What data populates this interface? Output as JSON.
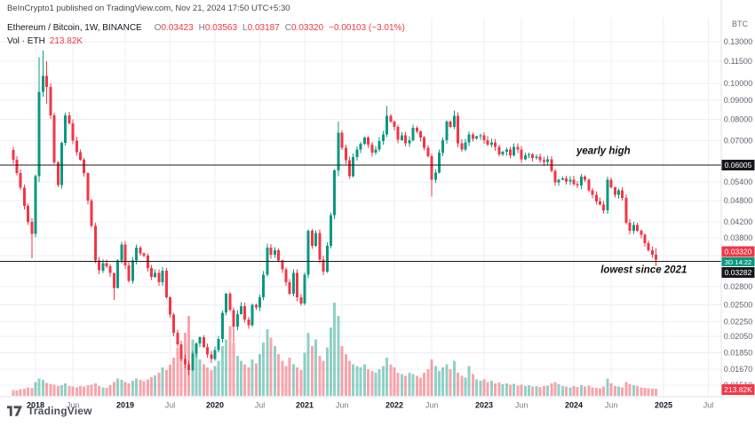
{
  "header": {
    "attribution": "BeInCrypto1 published on TradingView.com, Nov 21, 2024 17:50 UTC+5:30",
    "quote_currency": "BTC"
  },
  "legend": {
    "symbol_title": "Ethereum / Bitcoin, 1W, BINANCE",
    "o_label": "O",
    "o_value": "0.03423",
    "h_label": "H",
    "h_value": "0.03563",
    "l_label": "L",
    "l_value": "0.03187",
    "c_label": "C",
    "c_value": "0.03320",
    "change": "−0.00103 (−3.01%)",
    "vol_label": "Vol · ETH",
    "vol_value": "213.82K"
  },
  "footer": {
    "brand": "TradingView"
  },
  "chart_data": {
    "type": "candlestick",
    "symbol": "ETHBTC",
    "exchange": "BINANCE",
    "timeframe": "1W",
    "scale": "log",
    "ylim": [
      0.014,
      0.1511
    ],
    "grid": true,
    "ohlc_current": {
      "open": 0.03423,
      "high": 0.03563,
      "low": 0.03187,
      "close": 0.0332,
      "change": -0.00103,
      "change_pct": -3.01,
      "volume_label": "213.82K"
    },
    "price_lines": [
      {
        "price": 0.06005,
        "label": "0.06005"
      },
      {
        "price": 0.03282,
        "label": "0.03282"
      }
    ],
    "last_price_label": {
      "text": "0.03320"
    },
    "countdown_label": {
      "text": "3D 14:22"
    },
    "volume_axis_label": {
      "text": "213.82K"
    },
    "annotations": [
      {
        "text": "yearly high",
        "t": 2024.33,
        "price": 0.0658
      },
      {
        "text": "lowest since 2021",
        "t": 2024.78,
        "price": 0.0312
      }
    ],
    "y_ticks": [
      {
        "label": "0.13000",
        "p": 0.13
      },
      {
        "label": "0.11500",
        "p": 0.115
      },
      {
        "label": "0.10000",
        "p": 0.1
      },
      {
        "label": "0.09000",
        "p": 0.09
      },
      {
        "label": "0.08000",
        "p": 0.08
      },
      {
        "label": "0.07000",
        "p": 0.07
      },
      {
        "label": "0.05400",
        "p": 0.054
      },
      {
        "label": "0.04800",
        "p": 0.048
      },
      {
        "label": "0.04200",
        "p": 0.042
      },
      {
        "label": "0.03800",
        "p": 0.038
      },
      {
        "label": "0.02800",
        "p": 0.028
      },
      {
        "label": "0.02500",
        "p": 0.025
      },
      {
        "label": "0.02250",
        "p": 0.0225
      },
      {
        "label": "0.02050",
        "p": 0.0205
      },
      {
        "label": "0.01850",
        "p": 0.0185
      },
      {
        "label": "0.01670",
        "p": 0.0167
      },
      {
        "label": "0.01510",
        "p": 0.0151
      }
    ],
    "y_grid_extra": [
      0.06,
      0.034
    ],
    "x_ticks": [
      {
        "label": "2018",
        "t": 2018,
        "year": true
      },
      {
        "label": "Jun",
        "t": 2018.417
      },
      {
        "label": "2019",
        "t": 2019,
        "year": true
      },
      {
        "label": "Jul",
        "t": 2019.5
      },
      {
        "label": "2020",
        "t": 2020,
        "year": true
      },
      {
        "label": "Jul",
        "t": 2020.5
      },
      {
        "label": "2021",
        "t": 2021,
        "year": true
      },
      {
        "label": "Jun",
        "t": 2021.417
      },
      {
        "label": "2022",
        "t": 2022,
        "year": true
      },
      {
        "label": "Jun",
        "t": 2022.417
      },
      {
        "label": "2023",
        "t": 2023,
        "year": true
      },
      {
        "label": "Jun",
        "t": 2023.417
      },
      {
        "label": "2024",
        "t": 2024,
        "year": true
      },
      {
        "label": "Jun",
        "t": 2024.417
      },
      {
        "label": "2025",
        "t": 2025,
        "year": true
      },
      {
        "label": "Jul",
        "t": 2025.5
      }
    ],
    "colors": {
      "up": "#089981",
      "down": "#f23645",
      "vol_up": "rgba(8,153,129,0.45)",
      "vol_down": "rgba(242,54,69,0.45)",
      "line": "#16181d",
      "grid": "#eceff5",
      "separator": "#e0e3eb",
      "axis_text": "#5f636e",
      "year_text": "#131722",
      "month_text": "#787b86",
      "badge_dark": "#16181d",
      "badge_red": "#f23645",
      "badge_teal": "#089981",
      "annotation_text": "#0f0f0f"
    },
    "t0": 2017.75,
    "dt": 0.0416667,
    "open_first": 0.066,
    "vol_max_k": 2800,
    "points": [
      [
        0.062,
        180
      ],
      [
        0.057,
        160
      ],
      [
        0.052,
        200
      ],
      [
        0.0465,
        220
      ],
      [
        0.042,
        260
      ],
      [
        0.039,
        240,
        0.043,
        0.0335
      ],
      [
        0.056,
        420
      ],
      [
        0.095,
        520,
        0.118,
        0.054
      ],
      [
        0.105,
        480,
        0.123,
        0.092
      ],
      [
        0.098,
        390,
        0.115,
        0.088
      ],
      [
        0.082,
        360
      ],
      [
        0.061,
        340
      ],
      [
        0.053,
        300
      ],
      [
        0.069,
        320
      ],
      [
        0.082,
        380
      ],
      [
        0.078,
        300
      ],
      [
        0.07,
        280
      ],
      [
        0.065,
        260
      ],
      [
        0.062,
        300
      ],
      [
        0.057,
        280
      ],
      [
        0.048,
        320
      ],
      [
        0.041,
        340
      ],
      [
        0.033,
        380
      ],
      [
        0.031,
        300
      ],
      [
        0.0325,
        260
      ],
      [
        0.0318,
        240
      ],
      [
        0.0305,
        320
      ],
      [
        0.0278,
        420,
        0.0305,
        0.0258
      ],
      [
        0.033,
        520
      ],
      [
        0.0365,
        480
      ],
      [
        0.032,
        420
      ],
      [
        0.029,
        380
      ],
      [
        0.033,
        460
      ],
      [
        0.0358,
        520
      ],
      [
        0.0345,
        480
      ],
      [
        0.034,
        440
      ],
      [
        0.0315,
        500
      ],
      [
        0.0298,
        560
      ],
      [
        0.0305,
        620
      ],
      [
        0.0288,
        700
      ],
      [
        0.031,
        860
      ],
      [
        0.0262,
        780
      ],
      [
        0.0235,
        940
      ],
      [
        0.021,
        1150
      ],
      [
        0.0195,
        1450
      ],
      [
        0.0178,
        1250
      ],
      [
        0.0172,
        1900
      ],
      [
        0.0166,
        2400,
        0.0176,
        0.0161
      ],
      [
        0.0184,
        1700
      ],
      [
        0.0196,
        1300
      ],
      [
        0.0204,
        1100
      ],
      [
        0.0192,
        950
      ],
      [
        0.0183,
        850
      ],
      [
        0.0178,
        780
      ],
      [
        0.0188,
        900
      ],
      [
        0.0202,
        1050
      ],
      [
        0.0238,
        1500
      ],
      [
        0.0268,
        1700
      ],
      [
        0.0242,
        2100
      ],
      [
        0.0218,
        1600,
        0.0246,
        0.0198
      ],
      [
        0.0236,
        1200
      ],
      [
        0.0248,
        1050
      ],
      [
        0.0228,
        950
      ],
      [
        0.022,
        850
      ],
      [
        0.025,
        1100
      ],
      [
        0.0246,
        980
      ],
      [
        0.0262,
        1250
      ],
      [
        0.0302,
        1600
      ],
      [
        0.0358,
        2000
      ],
      [
        0.0342,
        1750
      ],
      [
        0.0352,
        1500
      ],
      [
        0.033,
        1250
      ],
      [
        0.0312,
        1050
      ],
      [
        0.0288,
        900
      ],
      [
        0.0268,
        1150
      ],
      [
        0.0305,
        950
      ],
      [
        0.0262,
        850
      ],
      [
        0.0252,
        780
      ],
      [
        0.0302,
        1300
      ],
      [
        0.0398,
        1900
      ],
      [
        0.0362,
        1500
      ],
      [
        0.0392,
        1700
      ],
      [
        0.0332,
        1200
      ],
      [
        0.0308,
        1050
      ],
      [
        0.0362,
        1450
      ],
      [
        0.0438,
        2050
      ],
      [
        0.058,
        2800
      ],
      [
        0.0735,
        2400,
        0.0788,
        0.056
      ],
      [
        0.0668,
        1500
      ],
      [
        0.0618,
        1250
      ],
      [
        0.056,
        1050
      ],
      [
        0.063,
        950
      ],
      [
        0.0662,
        900
      ],
      [
        0.0685,
        850
      ],
      [
        0.0712,
        950
      ],
      [
        0.0682,
        800
      ],
      [
        0.0648,
        750
      ],
      [
        0.0662,
        700
      ],
      [
        0.0698,
        800
      ],
      [
        0.0728,
        900
      ],
      [
        0.0818,
        1150,
        0.0868,
        0.0715
      ],
      [
        0.0788,
        950
      ],
      [
        0.0762,
        850
      ],
      [
        0.0702,
        700
      ],
      [
        0.0722,
        650
      ],
      [
        0.0688,
        600
      ],
      [
        0.0702,
        700
      ],
      [
        0.0758,
        650
      ],
      [
        0.0742,
        600
      ],
      [
        0.0712,
        550
      ],
      [
        0.0668,
        700
      ],
      [
        0.0635,
        800
      ],
      [
        0.0548,
        1100,
        0.0645,
        0.0492
      ],
      [
        0.0572,
        900
      ],
      [
        0.0648,
        750
      ],
      [
        0.0702,
        850
      ],
      [
        0.0788,
        950
      ],
      [
        0.0762,
        800
      ],
      [
        0.0818,
        1050,
        0.0845,
        0.0752
      ],
      [
        0.0688,
        700
      ],
      [
        0.0662,
        600
      ],
      [
        0.0692,
        550
      ],
      [
        0.0728,
        900
      ],
      [
        0.0708,
        650
      ],
      [
        0.0718,
        500
      ],
      [
        0.0722,
        450
      ],
      [
        0.0702,
        500
      ],
      [
        0.0682,
        420
      ],
      [
        0.0692,
        450
      ],
      [
        0.0672,
        380
      ],
      [
        0.0642,
        400
      ],
      [
        0.0652,
        350
      ],
      [
        0.0662,
        380
      ],
      [
        0.0638,
        330
      ],
      [
        0.0672,
        360
      ],
      [
        0.0662,
        310
      ],
      [
        0.0622,
        340
      ],
      [
        0.0638,
        300
      ],
      [
        0.0642,
        320
      ],
      [
        0.0628,
        280
      ],
      [
        0.0632,
        300
      ],
      [
        0.0618,
        270
      ],
      [
        0.0612,
        290
      ],
      [
        0.0622,
        310
      ],
      [
        0.0578,
        380
      ],
      [
        0.0538,
        420
      ],
      [
        0.0548,
        350
      ],
      [
        0.0552,
        300
      ],
      [
        0.0542,
        280
      ],
      [
        0.0548,
        260
      ],
      [
        0.0532,
        300
      ],
      [
        0.0528,
        270
      ],
      [
        0.0558,
        320
      ],
      [
        0.0548,
        280
      ],
      [
        0.0512,
        310
      ],
      [
        0.0498,
        260
      ],
      [
        0.0478,
        240
      ],
      [
        0.0468,
        230
      ],
      [
        0.0452,
        280
      ],
      [
        0.0548,
        520
      ],
      [
        0.0522,
        380
      ],
      [
        0.0498,
        300
      ],
      [
        0.0512,
        280
      ],
      [
        0.0488,
        260
      ],
      [
        0.0418,
        420
      ],
      [
        0.0398,
        350
      ],
      [
        0.0412,
        320
      ],
      [
        0.0398,
        290
      ],
      [
        0.0388,
        260
      ],
      [
        0.0368,
        240
      ],
      [
        0.0352,
        230
      ],
      [
        0.0342,
        220
      ],
      [
        0.0332,
        213.82,
        0.03563,
        0.03187
      ]
    ]
  }
}
